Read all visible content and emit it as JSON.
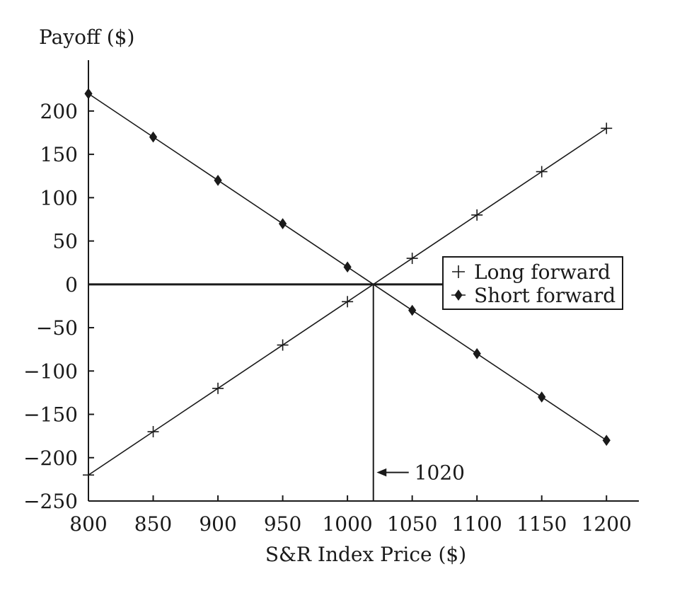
{
  "chart_data": {
    "type": "line",
    "title": "",
    "xlabel": "S&R Index Price ($)",
    "ylabel": "Payoff ($)",
    "xlim": [
      800,
      1225
    ],
    "ylim": [
      -250,
      235
    ],
    "x_ticks": [
      800,
      850,
      900,
      950,
      1000,
      1050,
      1100,
      1150,
      1200
    ],
    "y_ticks": [
      200,
      150,
      100,
      50,
      0,
      -50,
      -100,
      -150,
      -200,
      -250
    ],
    "y_tick_labels": [
      "200",
      "150",
      "100",
      "50",
      "0",
      "−50",
      "−100",
      "−150",
      "−200",
      "−250"
    ],
    "grid": false,
    "legend_position": "right",
    "series": [
      {
        "name": "Long forward",
        "marker": "plus",
        "x": [
          800,
          850,
          900,
          950,
          1000,
          1050,
          1100,
          1150,
          1200
        ],
        "y": [
          -220,
          -170,
          -120,
          -70,
          -20,
          30,
          80,
          130,
          180
        ]
      },
      {
        "name": "Short forward",
        "marker": "diamond",
        "x": [
          800,
          850,
          900,
          950,
          1000,
          1050,
          1100,
          1150,
          1200
        ],
        "y": [
          220,
          170,
          120,
          70,
          20,
          -30,
          -80,
          -130,
          -180
        ]
      }
    ],
    "zero_line": {
      "x_from": 800,
      "x_to": 1075,
      "y": 0
    },
    "reference_line": {
      "x": 1020,
      "y_from": -250,
      "y_to": 0
    },
    "annotation": {
      "text": "1020",
      "x": 1020,
      "y": -217
    }
  }
}
